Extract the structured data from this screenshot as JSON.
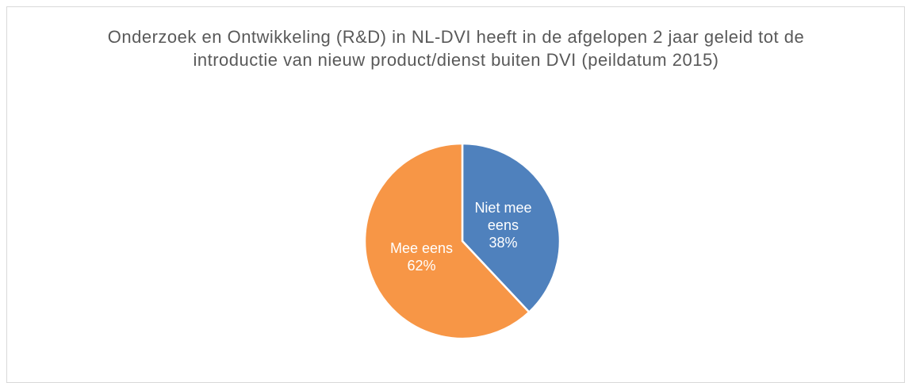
{
  "chart_data": {
    "type": "pie",
    "title": "Onderzoek en Ontwikkeling (R&D) in NL-DVI heeft in de afgelopen 2 jaar geleid tot de introductie van nieuw product/dienst buiten DVI (peildatum 2015)",
    "categories": [
      "Niet mee eens",
      "Mee eens"
    ],
    "values": [
      38,
      62
    ],
    "value_labels": [
      "38%",
      "62%"
    ],
    "colors": [
      "#4f81bd",
      "#f79646"
    ]
  }
}
